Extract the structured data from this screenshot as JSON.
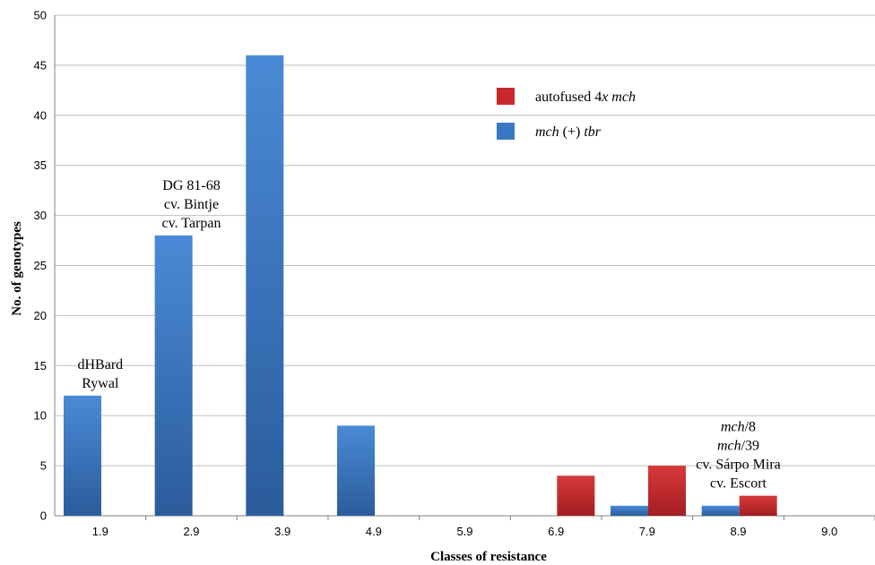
{
  "chart_data": {
    "type": "bar",
    "xlabel": "Classes of resistance",
    "ylabel": "No. of genotypes",
    "ylim": [
      0,
      50
    ],
    "yticks": [
      0,
      5,
      10,
      15,
      20,
      25,
      30,
      35,
      40,
      45,
      50
    ],
    "categories": [
      "1.9",
      "2.9",
      "3.9",
      "4.9",
      "5.9",
      "6.9",
      "7.9",
      "8.9",
      "9.0"
    ],
    "grid": true,
    "legend_position": "top-center",
    "series": [
      {
        "name": "mch (+) tbr",
        "color": "#3a78c4",
        "values": [
          12,
          28,
          46,
          9,
          0,
          0,
          1,
          1,
          0
        ]
      },
      {
        "name": "autofused 4x mch",
        "color": "#c8282b",
        "values": [
          0,
          0,
          0,
          0,
          0,
          4,
          5,
          2,
          0
        ]
      }
    ],
    "legend": [
      {
        "series": 1,
        "parts": [
          {
            "t": "autofused 4",
            "i": false
          },
          {
            "t": "x mch",
            "i": true
          }
        ]
      },
      {
        "series": 0,
        "parts": [
          {
            "t": "mch",
            "i": true
          },
          {
            "t": " (+) ",
            "i": false
          },
          {
            "t": "tbr",
            "i": true
          }
        ]
      }
    ],
    "annotations": [
      {
        "category": 0,
        "lines": [
          [
            {
              "t": "dHBard",
              "i": false
            }
          ],
          [
            {
              "t": "Rywal",
              "i": false
            }
          ]
        ]
      },
      {
        "category": 1,
        "lines": [
          [
            {
              "t": "DG 81-68",
              "i": false
            }
          ],
          [
            {
              "t": "cv. Bintje",
              "i": false
            }
          ],
          [
            {
              "t": "cv. Tarpan",
              "i": false
            }
          ]
        ]
      },
      {
        "category": 7,
        "lines": [
          [
            {
              "t": "mch",
              "i": true
            },
            {
              "t": "/8",
              "i": false
            }
          ],
          [
            {
              "t": "mch",
              "i": true
            },
            {
              "t": "/39",
              "i": false
            }
          ],
          [
            {
              "t": "cv. Sárpo Mira",
              "i": false
            }
          ],
          [
            {
              "t": "cv. Escort",
              "i": false
            }
          ]
        ]
      }
    ]
  }
}
